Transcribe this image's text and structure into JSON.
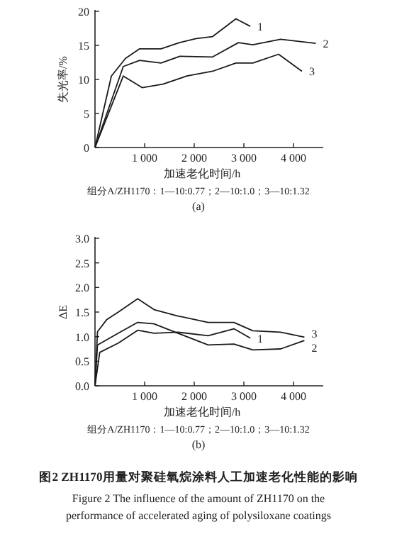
{
  "chart_data": [
    {
      "type": "line",
      "ylabel": "失光率/%",
      "xlabel": "加速老化时间/h",
      "xlim": [
        0,
        4600
      ],
      "ylim": [
        0,
        20
      ],
      "xticks": [
        {
          "value": 1000,
          "label": "1 000"
        },
        {
          "value": 2000,
          "label": "2 000"
        },
        {
          "value": 3000,
          "label": "3 000"
        },
        {
          "value": 4000,
          "label": "4 000"
        }
      ],
      "yticks": [
        0,
        5,
        10,
        15,
        20
      ],
      "grid": false,
      "marker": "none",
      "line_style": "solid",
      "annotations": [
        "组分A/ZH1170：1—10:0.77；2—10:1.0；3—10:1.32",
        "(a)"
      ],
      "series": [
        {
          "name": "1",
          "color": "#1a1a1a",
          "x": [
            0,
            330,
            616,
            900,
            1330,
            1700,
            2040,
            2370,
            2840,
            3130
          ],
          "values": [
            0,
            10.5,
            13.1,
            14.5,
            14.5,
            15.4,
            16,
            16.3,
            18.9,
            17.8
          ]
        },
        {
          "name": "2",
          "color": "#1a1a1a",
          "x": [
            0,
            570,
            900,
            1330,
            1710,
            2370,
            2890,
            3180,
            3740,
            4450
          ],
          "values": [
            0,
            11.9,
            12.8,
            12.4,
            13.4,
            13.3,
            15.4,
            15.1,
            15.9,
            15.3
          ]
        },
        {
          "name": "3",
          "color": "#1a1a1a",
          "x": [
            0,
            570,
            950,
            1370,
            1850,
            2370,
            2840,
            3180,
            3700,
            4170
          ],
          "values": [
            0,
            10.5,
            8.8,
            9.3,
            10.5,
            11.2,
            12.4,
            12.4,
            13.7,
            11.2
          ]
        }
      ]
    },
    {
      "type": "line",
      "ylabel": "ΔE",
      "xlabel": "加速老化时间/h",
      "xlim": [
        0,
        4600
      ],
      "ylim": [
        0,
        3
      ],
      "xticks": [
        {
          "value": 1000,
          "label": "1 000"
        },
        {
          "value": 2000,
          "label": "2 000"
        },
        {
          "value": 3000,
          "label": "3 000"
        },
        {
          "value": 4000,
          "label": "4 000"
        }
      ],
      "yticks": [
        {
          "value": 0,
          "label": "0.0"
        },
        {
          "value": 0.5,
          "label": "0.5"
        },
        {
          "value": 1,
          "label": "1.0"
        },
        {
          "value": 1.5,
          "label": "1.5"
        },
        {
          "value": 2,
          "label": "2.0"
        },
        {
          "value": 2.5,
          "label": "2.5"
        },
        {
          "value": 3,
          "label": "3.0"
        }
      ],
      "grid": false,
      "marker": "none",
      "line_style": "solid",
      "annotations": [
        "组分A/ZH1170：1—10:0.77；2—10:1.0；3—10:1.32",
        "(b)",
        "图2  ZH1170用量对聚硅氧烷涂料人工加速老化性能的影响",
        "Figure 2  The influence of the amount of ZH1170 on the performance of accelerated aging of polysiloxane coatings"
      ],
      "series": [
        {
          "name": "1",
          "color": "#1a1a1a",
          "x": [
            0,
            95,
            470,
            860,
            1190,
            1670,
            2280,
            2800,
            3130
          ],
          "values": [
            0,
            0.68,
            0.87,
            1.13,
            1.07,
            1.09,
            1.02,
            1.16,
            0.97
          ]
        },
        {
          "name": "2",
          "color": "#1a1a1a",
          "x": [
            0,
            50,
            470,
            860,
            1190,
            1670,
            2280,
            2800,
            3180,
            3740,
            4220
          ],
          "values": [
            0,
            0.83,
            1.07,
            1.29,
            1.26,
            1.07,
            0.83,
            0.85,
            0.73,
            0.75,
            0.92
          ]
        },
        {
          "name": "3",
          "color": "#1a1a1a",
          "x": [
            0,
            50,
            240,
            470,
            860,
            1190,
            1670,
            2280,
            2800,
            3180,
            3740,
            4220
          ],
          "values": [
            0,
            1.1,
            1.35,
            1.5,
            1.77,
            1.55,
            1.42,
            1.29,
            1.29,
            1.12,
            1.09,
            0.99
          ]
        }
      ]
    }
  ]
}
